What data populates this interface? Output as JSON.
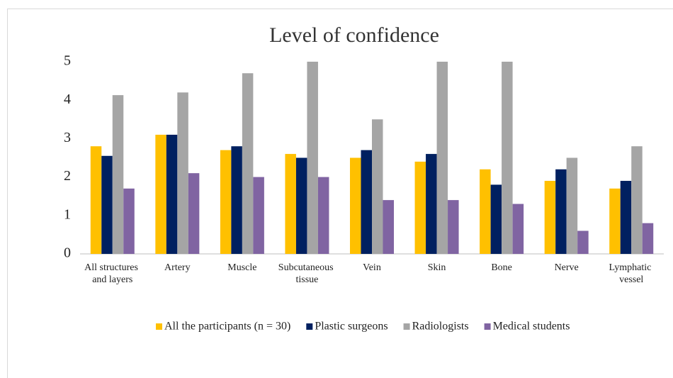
{
  "chart_data": {
    "type": "bar",
    "title": "Level of confidence",
    "categories": [
      "All structures and layers",
      "Artery",
      "Muscle",
      "Subcutaneous tissue",
      "Vein",
      "Skin",
      "Bone",
      "Nerve",
      "Lymphatic vessel"
    ],
    "series": [
      {
        "name": "All the participants (n = 30)",
        "color": "#FFC000",
        "values": [
          2.8,
          3.1,
          2.7,
          2.6,
          2.5,
          2.4,
          2.2,
          1.9,
          1.7
        ]
      },
      {
        "name": "Plastic surgeons",
        "color": "#002060",
        "values": [
          2.55,
          3.1,
          2.8,
          2.5,
          2.7,
          2.6,
          1.8,
          2.2,
          1.9
        ]
      },
      {
        "name": "Radiologists",
        "color": "#A5A5A5",
        "values": [
          4.13,
          4.2,
          4.7,
          5,
          3.5,
          5,
          5,
          2.5,
          2.8
        ]
      },
      {
        "name": "Medical students",
        "color": "#8064A2",
        "values": [
          1.7,
          2.1,
          2.0,
          2.0,
          1.4,
          1.4,
          1.3,
          0.6,
          0.8
        ]
      }
    ],
    "ylim": [
      0,
      5
    ],
    "yticks": [
      0,
      1,
      2,
      3,
      4,
      5
    ],
    "grid": false,
    "legend": "bottom"
  }
}
